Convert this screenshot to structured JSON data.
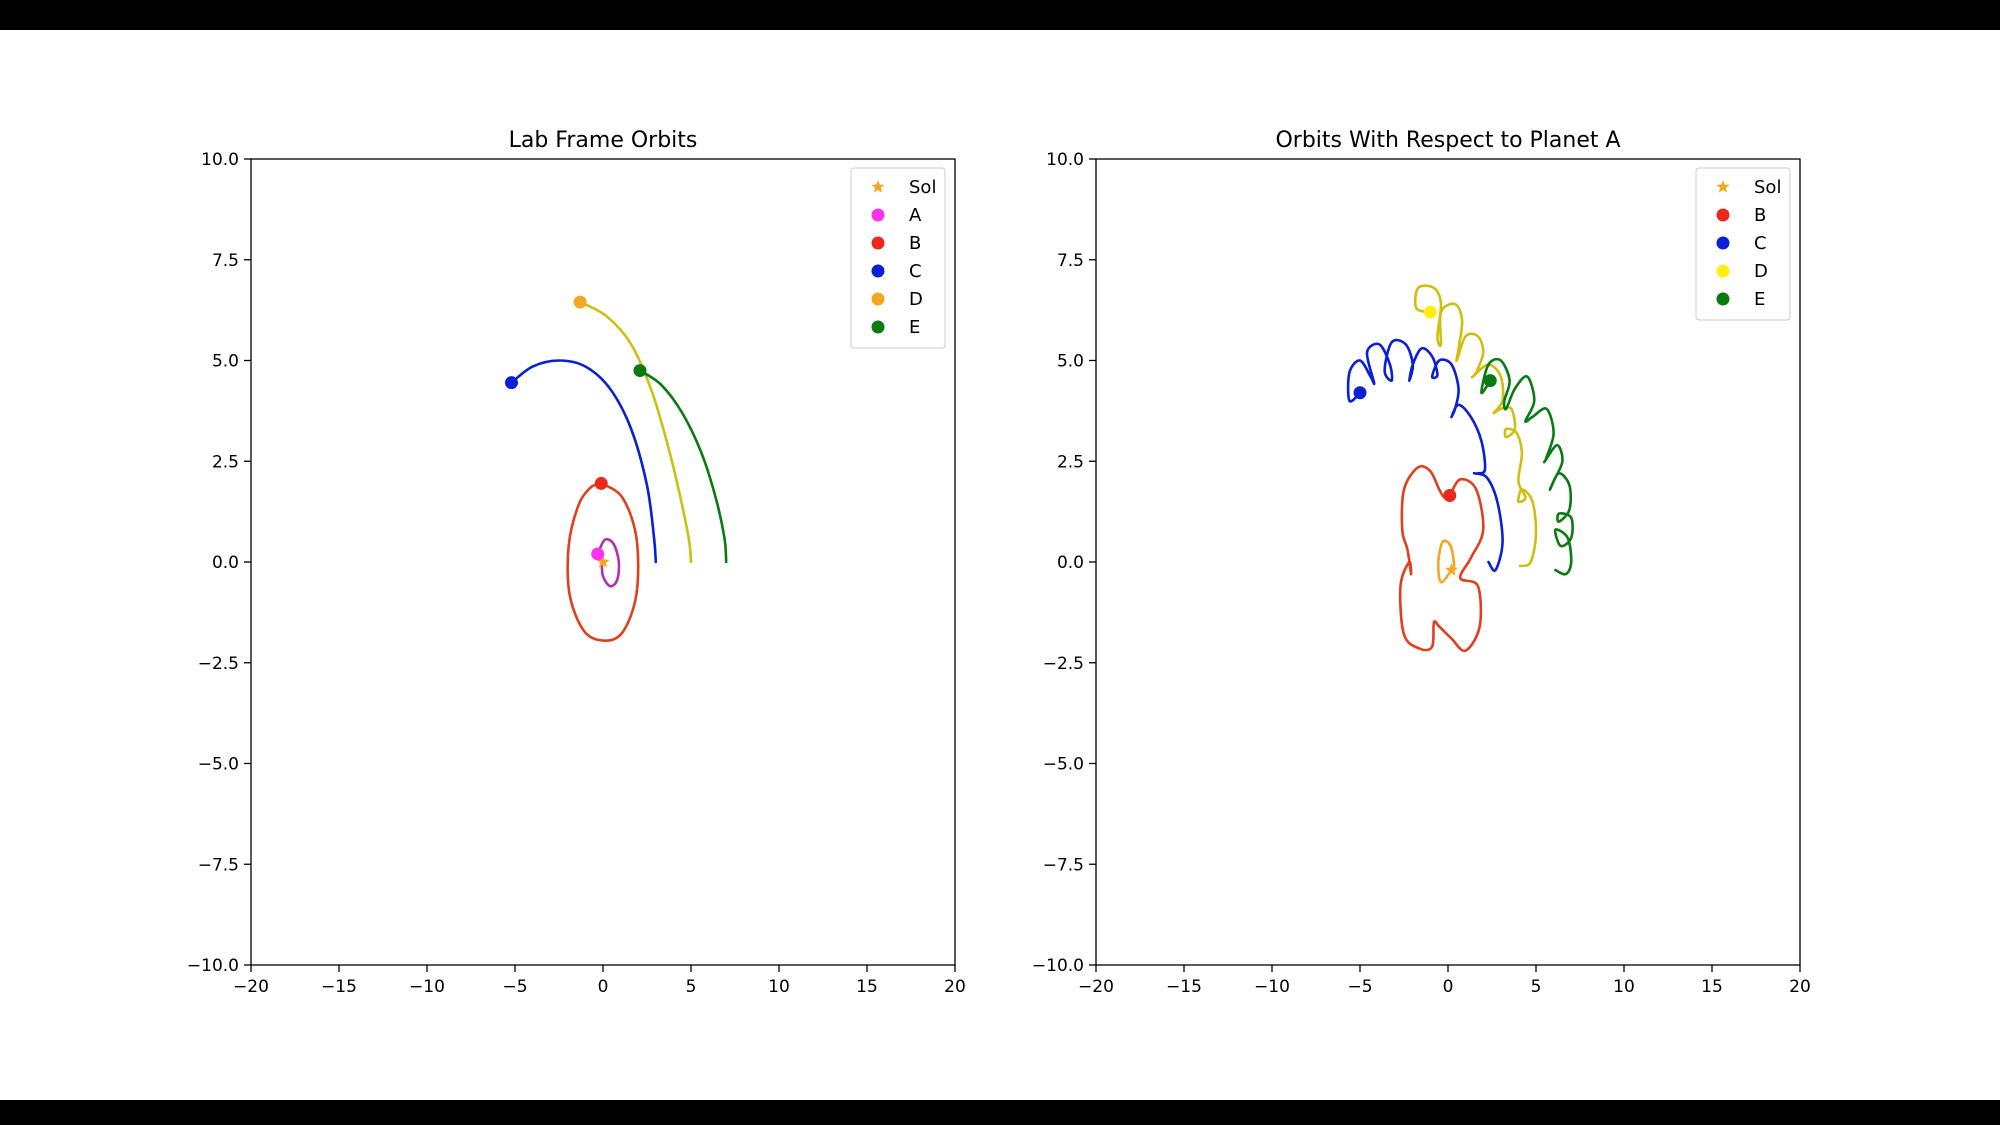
{
  "chart_data": [
    {
      "type": "line",
      "title": "Lab Frame Orbits",
      "xlabel": "",
      "ylabel": "",
      "xlim": [
        -20,
        20
      ],
      "ylim": [
        -10,
        10
      ],
      "xticks": [
        -20,
        -15,
        -10,
        -5,
        0,
        5,
        10,
        15,
        20
      ],
      "yticks": [
        -10,
        -7.5,
        -5,
        -2.5,
        0,
        2.5,
        5,
        7.5,
        10
      ],
      "xtick_labels": [
        "−20",
        "−15",
        "−10",
        "−5",
        "0",
        "5",
        "10",
        "15",
        "20"
      ],
      "ytick_labels": [
        "−10.0",
        "−7.5",
        "−5.0",
        "−2.5",
        "0.0",
        "2.5",
        "5.0",
        "7.5",
        "10.0"
      ],
      "grid": false,
      "legend_position": "top-right",
      "legend": [
        {
          "name": "Sol",
          "marker": "star",
          "color": "#f5a623"
        },
        {
          "name": "A",
          "marker": "circle",
          "color": "#ff33ee"
        },
        {
          "name": "B",
          "marker": "circle",
          "color": "#e8291c"
        },
        {
          "name": "C",
          "marker": "circle",
          "color": "#0a1fd6"
        },
        {
          "name": "D",
          "marker": "circle",
          "color": "#f5a623"
        },
        {
          "name": "E",
          "marker": "circle",
          "color": "#0a7a12"
        }
      ],
      "series": [
        {
          "name": "Sol",
          "marker": "star",
          "color": "#f5a623",
          "trail_color": "#f5a623",
          "points": [
            [
              0,
              0
            ],
            [
              0,
              0
            ]
          ]
        },
        {
          "name": "A",
          "marker": "circle",
          "color": "#ff33ee",
          "trail_color": "#b030b0",
          "points": [
            [
              -0.3,
              0.2
            ],
            [
              0.1,
              0.55
            ],
            [
              0.6,
              0.45
            ],
            [
              0.9,
              0.0
            ],
            [
              0.8,
              -0.45
            ],
            [
              0.4,
              -0.6
            ],
            [
              0.0,
              -0.35
            ],
            [
              -0.1,
              0.05
            ],
            [
              -0.3,
              0.2
            ]
          ]
        },
        {
          "name": "B",
          "marker": "circle",
          "color": "#e8291c",
          "trail_color": "#e0401c",
          "points": [
            [
              -0.1,
              1.95
            ],
            [
              1.1,
              1.6
            ],
            [
              1.9,
              0.6
            ],
            [
              1.9,
              -0.8
            ],
            [
              1.1,
              -1.75
            ],
            [
              0.0,
              -1.95
            ],
            [
              -1.1,
              -1.7
            ],
            [
              -1.9,
              -0.8
            ],
            [
              -1.95,
              0.4
            ],
            [
              -1.4,
              1.4
            ],
            [
              -0.7,
              1.85
            ],
            [
              -0.1,
              1.95
            ]
          ]
        },
        {
          "name": "C",
          "marker": "circle",
          "color": "#0a1fd6",
          "trail_color": "#0a1fd6",
          "points": [
            [
              -5.2,
              4.45
            ],
            [
              -4.0,
              4.85
            ],
            [
              -2.5,
              5.0
            ],
            [
              -1.0,
              4.85
            ],
            [
              0.4,
              4.3
            ],
            [
              1.6,
              3.3
            ],
            [
              2.5,
              1.9
            ],
            [
              2.9,
              0.6
            ],
            [
              3.0,
              0.0
            ]
          ]
        },
        {
          "name": "D",
          "marker": "circle",
          "color": "#f5a623",
          "trail_color": "#cfbf10",
          "points": [
            [
              -1.3,
              6.45
            ],
            [
              0.2,
              6.1
            ],
            [
              1.6,
              5.4
            ],
            [
              2.8,
              4.2
            ],
            [
              3.8,
              2.7
            ],
            [
              4.5,
              1.4
            ],
            [
              4.9,
              0.5
            ],
            [
              5.0,
              0.0
            ]
          ]
        },
        {
          "name": "E",
          "marker": "circle",
          "color": "#0a7a12",
          "trail_color": "#0a7a12",
          "points": [
            [
              2.1,
              4.75
            ],
            [
              3.3,
              4.4
            ],
            [
              4.5,
              3.7
            ],
            [
              5.6,
              2.7
            ],
            [
              6.4,
              1.6
            ],
            [
              6.9,
              0.6
            ],
            [
              7.0,
              0.0
            ]
          ]
        }
      ]
    },
    {
      "type": "line",
      "title": "Orbits With Respect to Planet A",
      "xlabel": "",
      "ylabel": "",
      "xlim": [
        -20,
        20
      ],
      "ylim": [
        -10,
        10
      ],
      "xticks": [
        -20,
        -15,
        -10,
        -5,
        0,
        5,
        10,
        15,
        20
      ],
      "yticks": [
        -10,
        -7.5,
        -5,
        -2.5,
        0,
        2.5,
        5,
        7.5,
        10
      ],
      "xtick_labels": [
        "−20",
        "−15",
        "−10",
        "−5",
        "0",
        "5",
        "10",
        "15",
        "20"
      ],
      "ytick_labels": [
        "−10.0",
        "−7.5",
        "−5.0",
        "−2.5",
        "0.0",
        "2.5",
        "5.0",
        "7.5",
        "10.0"
      ],
      "grid": false,
      "legend_position": "top-right",
      "legend": [
        {
          "name": "Sol",
          "marker": "star",
          "color": "#f5a623"
        },
        {
          "name": "B",
          "marker": "circle",
          "color": "#e8291c"
        },
        {
          "name": "C",
          "marker": "circle",
          "color": "#0a1fd6"
        },
        {
          "name": "D",
          "marker": "circle",
          "color": "#ffee11"
        },
        {
          "name": "E",
          "marker": "circle",
          "color": "#0a7a12"
        }
      ],
      "series": [
        {
          "name": "Sol",
          "marker": "star",
          "color": "#f5a623",
          "trail_color": "#f5a623",
          "points": [
            [
              0.2,
              -0.2
            ],
            [
              -0.4,
              -0.5
            ],
            [
              -0.55,
              0.0
            ],
            [
              -0.3,
              0.5
            ],
            [
              0.15,
              0.4
            ],
            [
              0.35,
              -0.1
            ],
            [
              0.2,
              -0.2
            ]
          ]
        },
        {
          "name": "B",
          "marker": "circle",
          "color": "#e8291c",
          "trail_color": "#e0401c",
          "points": [
            [
              0.1,
              1.65
            ],
            [
              0.7,
              2.05
            ],
            [
              1.6,
              1.8
            ],
            [
              2.0,
              0.8
            ],
            [
              1.3,
              0.1
            ],
            [
              0.7,
              -0.4
            ],
            [
              1.7,
              -0.6
            ],
            [
              1.8,
              -1.6
            ],
            [
              1.0,
              -2.2
            ],
            [
              0.2,
              -1.9
            ],
            [
              -0.5,
              -1.6
            ],
            [
              -0.8,
              -1.5
            ],
            [
              -0.9,
              -2.1
            ],
            [
              -1.6,
              -2.15
            ],
            [
              -2.5,
              -1.8
            ],
            [
              -2.7,
              -0.6
            ],
            [
              -2.2,
              0.0
            ],
            [
              -2.1,
              -0.3
            ],
            [
              -2.3,
              0.3
            ],
            [
              -2.6,
              0.8
            ],
            [
              -2.5,
              1.8
            ],
            [
              -1.7,
              2.35
            ],
            [
              -1.0,
              2.25
            ],
            [
              -0.5,
              1.8
            ],
            [
              -0.2,
              1.6
            ],
            [
              0.1,
              1.65
            ]
          ]
        },
        {
          "name": "C",
          "marker": "circle",
          "color": "#0a1fd6",
          "trail_color": "#0a1fd6",
          "points": [
            [
              -5.0,
              4.2
            ],
            [
              -5.6,
              4.0
            ],
            [
              -5.6,
              4.7
            ],
            [
              -5.0,
              5.0
            ],
            [
              -4.4,
              4.6
            ],
            [
              -4.2,
              4.45
            ],
            [
              -4.6,
              5.2
            ],
            [
              -3.9,
              5.4
            ],
            [
              -3.3,
              4.9
            ],
            [
              -3.2,
              4.5
            ],
            [
              -3.6,
              4.75
            ],
            [
              -3.2,
              5.45
            ],
            [
              -2.4,
              5.4
            ],
            [
              -2.0,
              4.9
            ],
            [
              -2.2,
              4.5
            ],
            [
              -2.0,
              4.9
            ],
            [
              -1.5,
              5.3
            ],
            [
              -0.9,
              5.1
            ],
            [
              -0.6,
              4.65
            ],
            [
              -0.9,
              4.6
            ],
            [
              -0.5,
              5.0
            ],
            [
              0.2,
              4.9
            ],
            [
              0.6,
              4.3
            ],
            [
              0.4,
              3.8
            ],
            [
              0.2,
              3.6
            ],
            [
              0.6,
              3.9
            ],
            [
              1.3,
              3.6
            ],
            [
              1.9,
              3.0
            ],
            [
              2.1,
              2.3
            ],
            [
              1.7,
              2.2
            ],
            [
              1.5,
              2.2
            ],
            [
              2.2,
              2.1
            ],
            [
              2.8,
              1.5
            ],
            [
              3.1,
              0.5
            ],
            [
              2.7,
              -0.2
            ],
            [
              2.3,
              0.0
            ]
          ]
        },
        {
          "name": "D",
          "marker": "circle",
          "color": "#ffee11",
          "trail_color": "#cfbf10",
          "points": [
            [
              -1.0,
              6.2
            ],
            [
              -1.8,
              6.3
            ],
            [
              -1.7,
              6.8
            ],
            [
              -0.8,
              6.8
            ],
            [
              -0.4,
              6.4
            ],
            [
              -0.6,
              5.6
            ],
            [
              -0.4,
              5.4
            ],
            [
              -0.4,
              6.2
            ],
            [
              0.4,
              6.4
            ],
            [
              0.8,
              6.0
            ],
            [
              0.6,
              5.3
            ],
            [
              0.5,
              5.0
            ],
            [
              1.0,
              5.6
            ],
            [
              1.7,
              5.6
            ],
            [
              2.0,
              5.2
            ],
            [
              1.6,
              4.7
            ],
            [
              1.4,
              4.6
            ],
            [
              2.3,
              4.9
            ],
            [
              3.0,
              4.6
            ],
            [
              3.1,
              4.0
            ],
            [
              2.6,
              3.7
            ],
            [
              3.0,
              3.8
            ],
            [
              3.6,
              3.8
            ],
            [
              3.8,
              3.3
            ],
            [
              3.3,
              3.1
            ],
            [
              3.3,
              3.3
            ],
            [
              3.9,
              3.2
            ],
            [
              4.2,
              2.7
            ],
            [
              4.0,
              2.0
            ],
            [
              4.4,
              1.6
            ],
            [
              4.0,
              1.5
            ],
            [
              4.2,
              1.8
            ],
            [
              4.8,
              1.5
            ],
            [
              5.0,
              0.7
            ],
            [
              4.7,
              0.0
            ],
            [
              4.1,
              -0.1
            ]
          ]
        },
        {
          "name": "E",
          "marker": "circle",
          "color": "#0a7a12",
          "trail_color": "#0a7a12",
          "points": [
            [
              2.4,
              4.5
            ],
            [
              1.9,
              4.2
            ],
            [
              2.3,
              4.9
            ],
            [
              3.0,
              5.0
            ],
            [
              3.5,
              4.5
            ],
            [
              3.2,
              4.0
            ],
            [
              3.3,
              3.8
            ],
            [
              3.8,
              4.3
            ],
            [
              4.5,
              4.6
            ],
            [
              4.9,
              4.0
            ],
            [
              4.4,
              3.5
            ],
            [
              4.8,
              3.6
            ],
            [
              5.6,
              3.8
            ],
            [
              6.0,
              3.2
            ],
            [
              5.6,
              2.6
            ],
            [
              5.5,
              2.5
            ],
            [
              6.2,
              2.9
            ],
            [
              6.5,
              2.5
            ],
            [
              6.0,
              2.0
            ],
            [
              5.8,
              1.8
            ],
            [
              6.3,
              2.2
            ],
            [
              6.9,
              1.9
            ],
            [
              6.9,
              1.3
            ],
            [
              6.3,
              1.0
            ],
            [
              6.3,
              1.2
            ],
            [
              7.0,
              1.1
            ],
            [
              7.0,
              0.6
            ],
            [
              6.4,
              0.4
            ],
            [
              6.1,
              0.8
            ],
            [
              6.8,
              0.6
            ],
            [
              7.0,
              0.0
            ],
            [
              6.7,
              -0.3
            ],
            [
              6.1,
              -0.2
            ]
          ]
        }
      ]
    }
  ]
}
